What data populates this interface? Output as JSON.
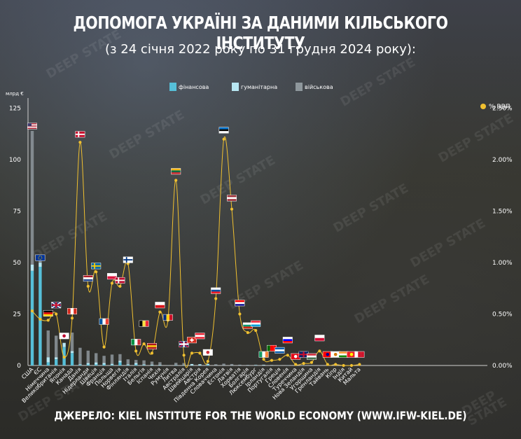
{
  "title": "ДОПОМОГА УКРАЇНІ ЗА ДАНИМИ КІЛЬСЬКОГО ІНСТИТУТУ",
  "subtitle": "(з 24 січня 2022 року по 31 грудня 2024 року):",
  "source": "ДЖЕРЕЛО: KIEL INSTITUTE FOR THE WORLD ECONOMY (WWW.IFW-KIEL.DE)",
  "watermark": "DEEP STATE",
  "chart_data": {
    "type": "bar",
    "ylabel": "млрд €",
    "y2label": "% ВВП",
    "ylim": [
      0,
      130
    ],
    "y2lim": [
      0,
      2.6
    ],
    "yticks": [
      0,
      25,
      50,
      75,
      100,
      125
    ],
    "y2ticks": [
      "0.00%",
      "0.50%",
      "1.00%",
      "1.50%",
      "2.00%",
      "2.50%"
    ],
    "legend": [
      {
        "name": "фінансова",
        "color": "#56bfd8"
      },
      {
        "name": "гуманітарна",
        "color": "#b7e6f2"
      },
      {
        "name": "військова",
        "color": "#8e979c"
      }
    ],
    "categories": [
      "США",
      "ЄС",
      "Німеччина",
      "Великобританія",
      "Японія",
      "Канада",
      "Данія",
      "Нідерланди",
      "Швеція",
      "Франція",
      "Польща",
      "Норвегія",
      "Фінляндія",
      "Італія",
      "Бельгія",
      "Іспанія",
      "Чехія",
      "Румунія",
      "Литва",
      "Австралія",
      "Швейцарія",
      "Австрія",
      "Південна Корея",
      "Словаччина",
      "Естонія",
      "Латвія",
      "Хорватія",
      "Болгарія",
      "Люксембург",
      "Ірландія",
      "Португалія",
      "Греція",
      "Словенія",
      "Туреччина",
      "Нова Зеландія",
      "Угорщина",
      "Гренландія",
      "Тайвань",
      "Кіпр",
      "Індія",
      "Китай",
      "Мальта"
    ],
    "series": [
      {
        "name": "фінансова",
        "values": [
          46,
          48,
          1.5,
          3,
          9,
          6,
          0.3,
          0.5,
          0.5,
          0.5,
          0.3,
          1.5,
          0.2,
          0.5,
          0.2,
          0.1,
          0.1,
          0,
          0.1,
          0.1,
          0.1,
          0.1,
          0.3,
          0,
          0,
          0,
          0,
          0,
          0.1,
          0,
          0,
          0,
          0,
          0,
          0,
          0,
          0,
          0,
          0,
          0,
          0,
          0
        ]
      },
      {
        "name": "гуманітарна",
        "values": [
          3,
          2,
          2.5,
          1,
          2,
          1,
          0.3,
          0.7,
          1,
          0.7,
          0.5,
          0.8,
          0.3,
          0.7,
          0.3,
          0.3,
          0.2,
          0.1,
          0.1,
          0.1,
          0.6,
          0.5,
          0.5,
          0.1,
          0.1,
          0.1,
          0.1,
          0.1,
          0.1,
          0.3,
          0.1,
          0.1,
          0.1,
          0.1,
          0.05,
          0.1,
          0,
          0,
          0,
          0,
          0,
          0
        ]
      },
      {
        "name": "військова",
        "values": [
          65,
          1,
          13,
          10.5,
          0,
          9,
          8,
          6,
          4.5,
          3.5,
          4.5,
          3.2,
          2.5,
          1.5,
          2,
          1.5,
          1.3,
          0.1,
          1.1,
          1,
          0,
          0,
          0,
          0.5,
          0.8,
          0.6,
          0.3,
          0.2,
          0.2,
          0.1,
          0.2,
          0.1,
          0.1,
          0,
          0.1,
          0,
          0,
          0,
          0,
          0,
          0,
          0
        ]
      }
    ],
    "gdp_percent": [
      0.53,
      0.45,
      0.44,
      0.5,
      0.08,
      0.46,
      2.17,
      0.77,
      0.91,
      0.18,
      0.8,
      0.77,
      0.99,
      0.14,
      0.21,
      0.12,
      0.52,
      0.44,
      1.8,
      0.1,
      0.12,
      0.12,
      0.04,
      0.65,
      2.2,
      1.52,
      0.5,
      0.32,
      0.34,
      0.06,
      0.05,
      0.06,
      0.1,
      0.01,
      0.02,
      0.03,
      0.14,
      0.01,
      0.01,
      0,
      0,
      0.01
    ],
    "flag_values": [
      115,
      51,
      24,
      28,
      13,
      25,
      111,
      41,
      47,
      20,
      42,
      40,
      50,
      10,
      19,
      8,
      28,
      22,
      93,
      9,
      11,
      13,
      5,
      35,
      113,
      80,
      29,
      18,
      19,
      4,
      7,
      6,
      11,
      3,
      4,
      3,
      12,
      4,
      4,
      4,
      4,
      4
    ]
  }
}
